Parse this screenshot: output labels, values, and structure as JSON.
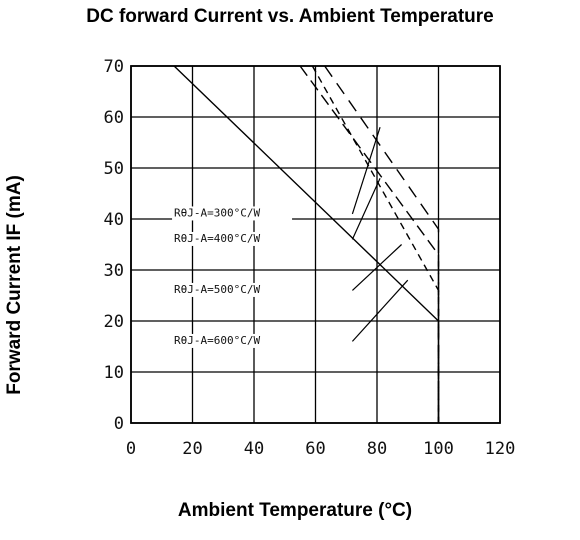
{
  "chart_data": {
    "type": "line",
    "title": "DC forward Current vs. Ambient Temperature",
    "xlabel": "Ambient Temperature (°C)",
    "ylabel": "Forward Current IF (mA)",
    "xlim": [
      0,
      120
    ],
    "ylim": [
      0,
      70
    ],
    "xticks": [
      "0",
      "20",
      "40",
      "60",
      "80",
      "100",
      "120"
    ],
    "yticks": [
      "0",
      "10",
      "20",
      "30",
      "40",
      "50",
      "60",
      "70"
    ],
    "grid": true,
    "series": [
      {
        "name": "RθJ-A=300°C/W",
        "x": [
          63,
          100,
          100
        ],
        "y": [
          70,
          38,
          0
        ]
      },
      {
        "name": "RθJ-A=400°C/W",
        "x": [
          55,
          100,
          100
        ],
        "y": [
          70,
          33,
          0
        ]
      },
      {
        "name": "RθJ-A=500°C/W",
        "x": [
          59,
          100,
          100
        ],
        "y": [
          70,
          26,
          0
        ]
      },
      {
        "name": "RθJ-A=600°C/W",
        "x": [
          14,
          100,
          100
        ],
        "y": [
          70,
          20,
          0
        ]
      }
    ]
  }
}
